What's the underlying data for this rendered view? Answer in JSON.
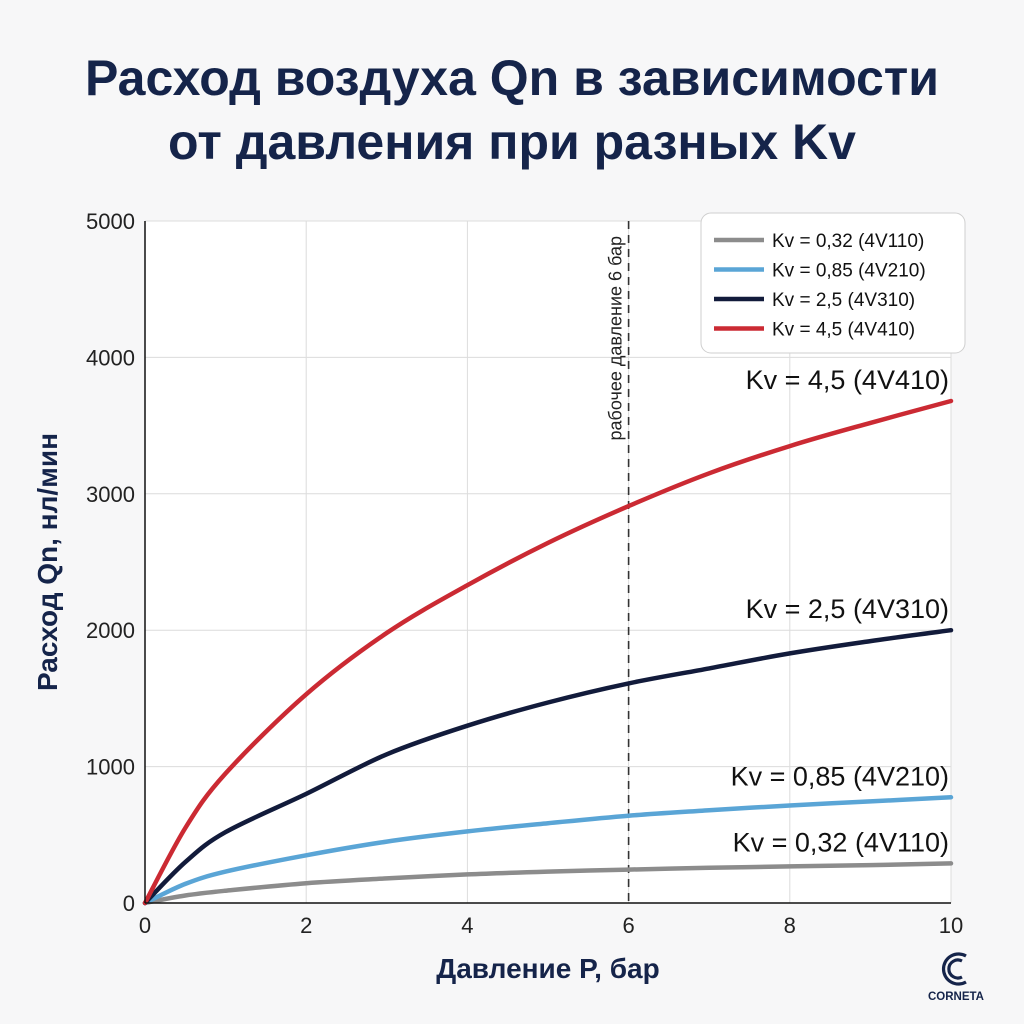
{
  "chart_data": {
    "type": "line",
    "title_lines": [
      "Расход воздуха Qn в зависимости",
      "от давления при разных Kv"
    ],
    "xlabel": "Давление P, бар",
    "ylabel": "Расход Qn, нл/мин",
    "xlim": [
      0,
      10
    ],
    "ylim": [
      0,
      5000
    ],
    "x_ticks": [
      "0",
      "2",
      "4",
      "6",
      "8",
      "10"
    ],
    "y_ticks": [
      "0",
      "1000",
      "2000",
      "3000",
      "4000",
      "5000"
    ],
    "x_tick_values": [
      0,
      2,
      4,
      6,
      8,
      10
    ],
    "y_tick_values": [
      0,
      1000,
      2000,
      3000,
      4000,
      5000
    ],
    "grid": true,
    "legend_position": "top-right",
    "x": [
      0,
      0.5,
      1,
      2,
      3,
      4,
      5,
      6,
      7,
      8,
      9,
      10
    ],
    "series": [
      {
        "name": "Kv = 0,32 (4V110)",
        "end_label": "Kv = 0,32 (4V110)",
        "color": "#8c8c8c",
        "values": [
          0,
          55,
          90,
          145,
          180,
          210,
          230,
          245,
          258,
          268,
          278,
          290
        ]
      },
      {
        "name": "Kv = 0,85 (4V210)",
        "end_label": "Kv = 0,85 (4V210)",
        "color": "#5aa5d6",
        "values": [
          0,
          140,
          230,
          350,
          450,
          525,
          585,
          640,
          680,
          715,
          745,
          775
        ]
      },
      {
        "name": "Kv = 2,5 (4V310)",
        "end_label": "Kv = 2,5 (4V310)",
        "color": "#121b3b",
        "values": [
          0,
          300,
          520,
          800,
          1090,
          1300,
          1470,
          1610,
          1720,
          1830,
          1920,
          2000
        ]
      },
      {
        "name": "Kv = 4,5 (4V410)",
        "end_label": "Kv = 4,5 (4V410)",
        "color": "#cb2a33",
        "values": [
          0,
          550,
          950,
          1530,
          1980,
          2330,
          2640,
          2910,
          3150,
          3350,
          3520,
          3680
        ]
      }
    ],
    "reference_line": {
      "x": 6,
      "label": "рабочее давление 6 бар"
    }
  },
  "logo": {
    "text": "CORNETA",
    "icon": "corneta-c-logo-icon"
  }
}
